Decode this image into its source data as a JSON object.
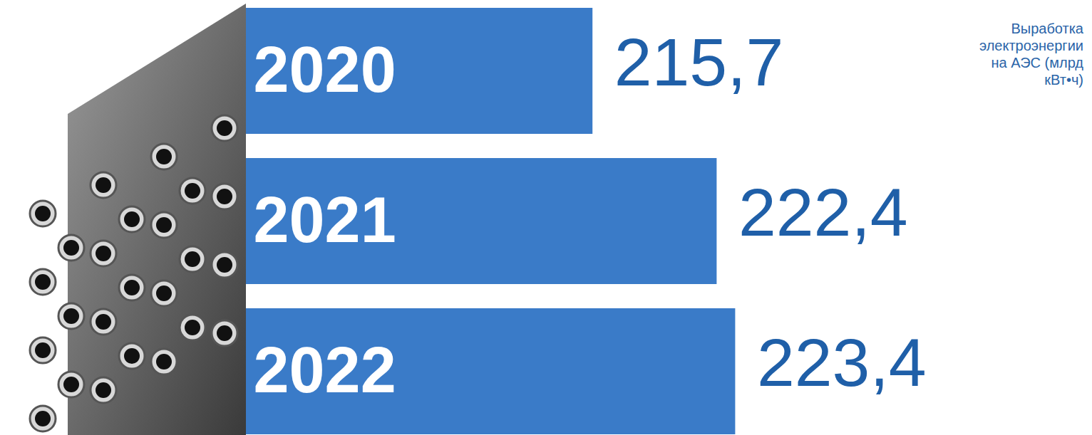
{
  "chart_data": {
    "type": "bar",
    "orientation": "horizontal",
    "title": "Выработка электроэнергии на АЭС (млрд кВт•ч)",
    "categories": [
      "2020",
      "2021",
      "2022"
    ],
    "values": [
      215.7,
      222.4,
      223.4
    ],
    "value_labels": [
      "215,7",
      "222,4",
      "223,4"
    ],
    "xlim": [
      197,
      230
    ],
    "color": "#3a7bc8",
    "data_labels": true,
    "tick_labels": false
  }
}
